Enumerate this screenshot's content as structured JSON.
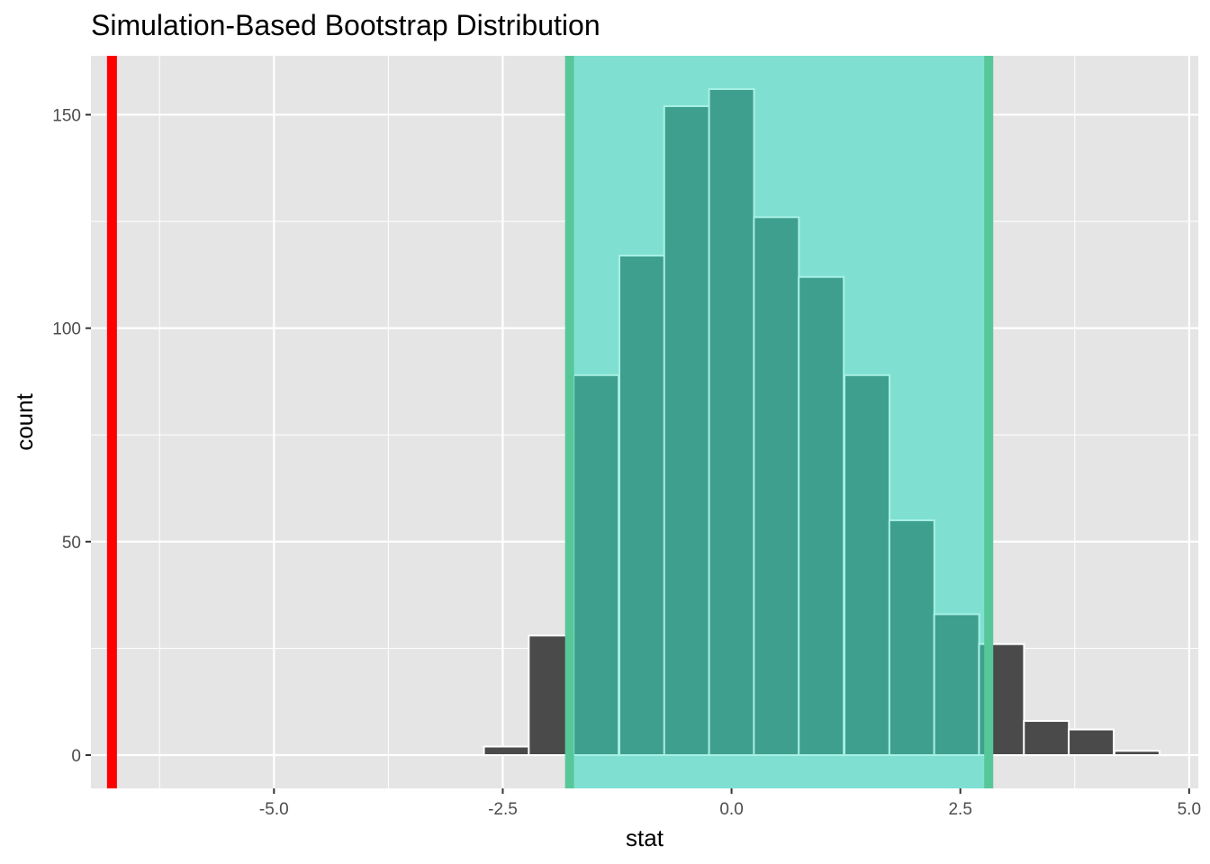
{
  "chart_data": {
    "type": "bar",
    "title": "Simulation-Based Bootstrap Distribution",
    "xlabel": "stat",
    "ylabel": "count",
    "xlim": [
      -7.0,
      5.1
    ],
    "ylim": [
      -7.8,
      163.8
    ],
    "x_ticks": [
      {
        "value": -5.0,
        "label": "-5.0"
      },
      {
        "value": -2.5,
        "label": "-2.5"
      },
      {
        "value": 0.0,
        "label": "0.0"
      },
      {
        "value": 2.5,
        "label": "2.5"
      },
      {
        "value": 5.0,
        "label": "5.0"
      }
    ],
    "y_ticks": [
      {
        "value": 0,
        "label": "0"
      },
      {
        "value": 50,
        "label": "50"
      },
      {
        "value": 100,
        "label": "100"
      },
      {
        "value": 150,
        "label": "150"
      }
    ],
    "bin_width": 0.4917,
    "bins": [
      {
        "center": -2.46,
        "count": 2
      },
      {
        "center": -1.97,
        "count": 28
      },
      {
        "center": -1.48,
        "count": 89
      },
      {
        "center": -0.98,
        "count": 117
      },
      {
        "center": -0.49,
        "count": 152
      },
      {
        "center": 0.0,
        "count": 156
      },
      {
        "center": 0.49,
        "count": 126
      },
      {
        "center": 0.98,
        "count": 112
      },
      {
        "center": 1.48,
        "count": 89
      },
      {
        "center": 1.97,
        "count": 55
      },
      {
        "center": 2.46,
        "count": 33
      },
      {
        "center": 2.95,
        "count": 26
      },
      {
        "center": 3.44,
        "count": 8
      },
      {
        "center": 3.93,
        "count": 6
      },
      {
        "center": 4.43,
        "count": 1
      }
    ],
    "confidence_interval": [
      -1.77,
      2.81
    ],
    "observed_stat": -6.77,
    "grid": true,
    "colors": {
      "panel": "#e5e5e5",
      "grid_major": "#ffffff",
      "bar_fill": "#4a4a4a",
      "bar_outline": "#ffffff",
      "ci_shade": "#7fe0d2",
      "ci_bar_fill": "#3f9f8f",
      "ci_bar_outline": "#a8f0e4",
      "ci_line": "#57c79a",
      "observed_line": "#ff0000"
    }
  }
}
